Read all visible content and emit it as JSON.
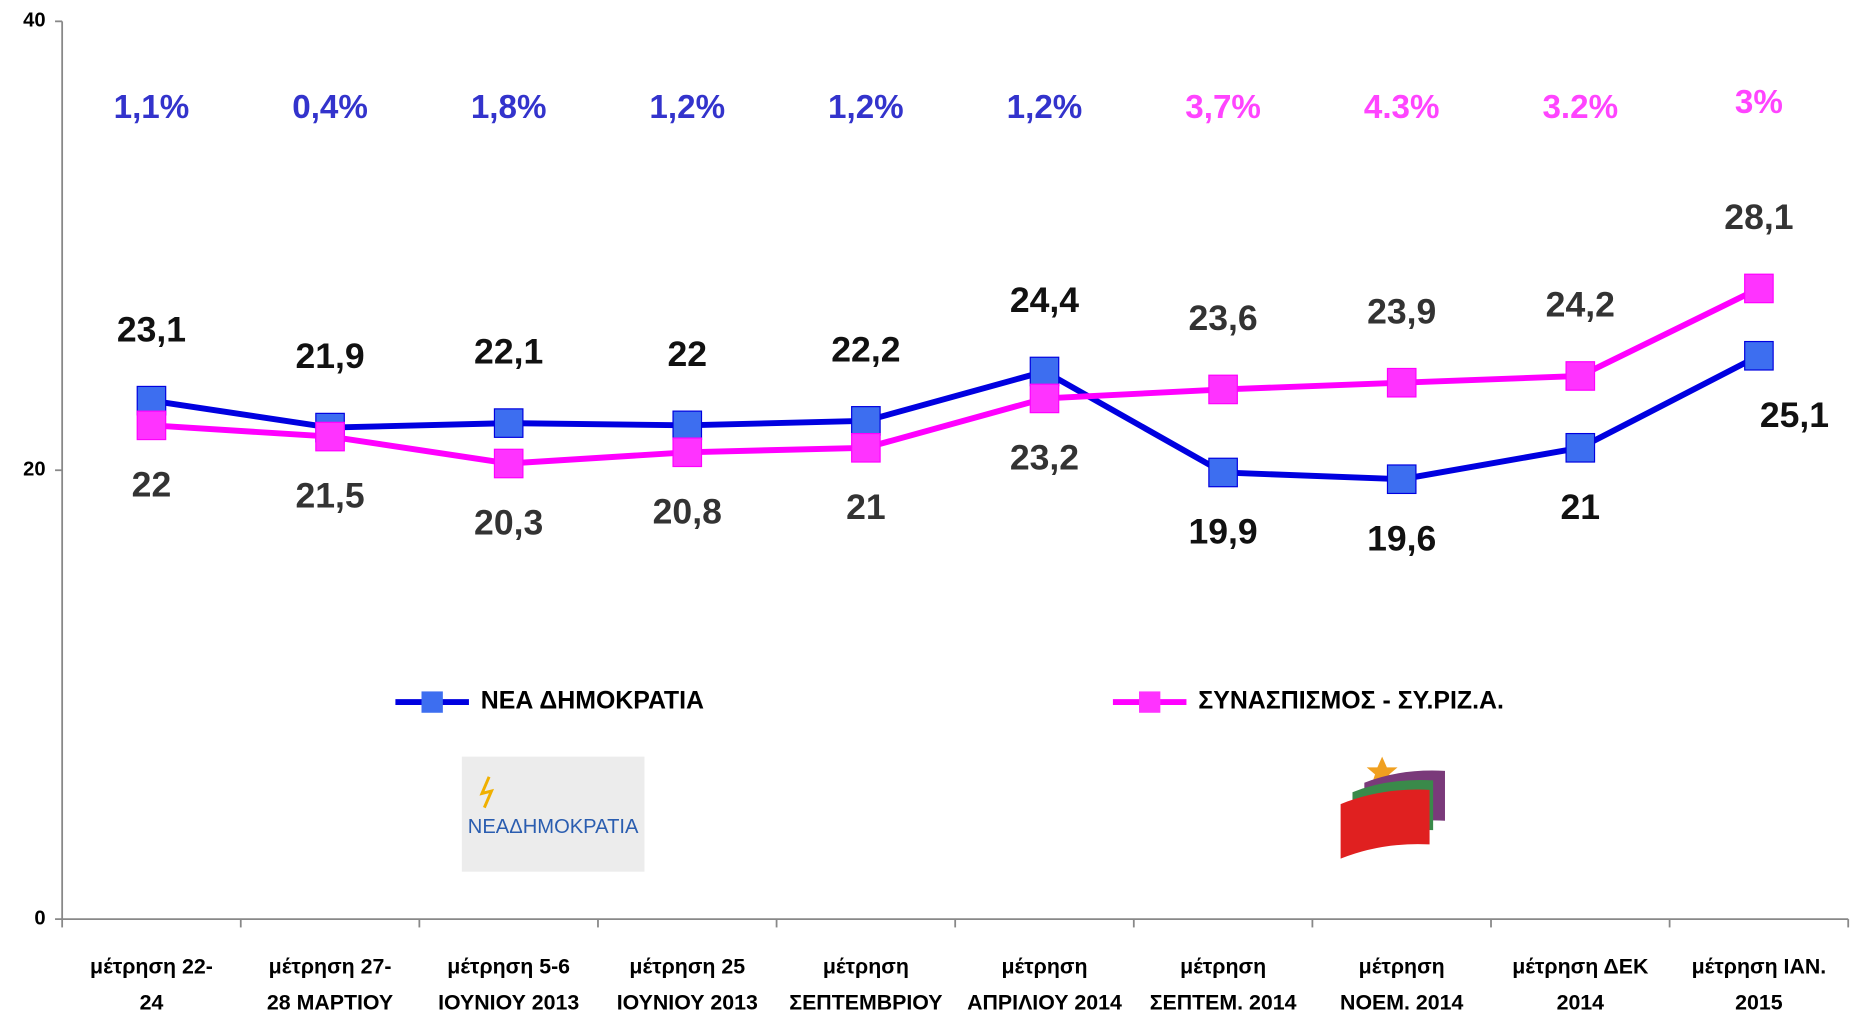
{
  "chart_data": {
    "type": "line",
    "categories": [
      "μέτρηση  22-\n24",
      "μέτρηση  27-\n28 ΜΑΡΤΙΟΥ",
      "μέτρηση  5-6\nΙΟΥΝΙΟΥ  2013",
      "μέτρηση 25\nΙΟΥΝΙΟΥ 2013",
      "μέτρηση\nΣΕΠΤΕΜΒΡΙΟΥ",
      "μέτρηση\nΑΠΡΙΛΙΟΥ 2014",
      "μέτρηση\nΣΕΠΤΕΜ. 2014",
      "μέτρηση\nΝΟΕΜ. 2014",
      "μέτρηση ΔΕΚ\n2014",
      "μέτρηση ΙΑΝ.\n2015"
    ],
    "series": [
      {
        "name": "ΝΕΑ ΔΗΜΟΚΡΑΤΙΑ",
        "color": "#0000e0",
        "marker_color": "#3d6ef0",
        "values": [
          23.1,
          21.9,
          22.1,
          22,
          22.2,
          24.4,
          19.9,
          19.6,
          21,
          25.1
        ],
        "value_labels": [
          "23,1",
          "21,9",
          "22,1",
          "22",
          "22,2",
          "24,4",
          "19,9",
          "19,6",
          "21",
          "25,1"
        ]
      },
      {
        "name": "ΣΥΝΑΣΠΙΣΜΟΣ - ΣΥ.ΡΙΖ.Α.",
        "color": "#ff00ff",
        "marker_color": "#ff33ff",
        "values": [
          22,
          21.5,
          20.3,
          20.8,
          21,
          23.2,
          23.6,
          23.9,
          24.2,
          28.1
        ],
        "value_labels": [
          "22",
          "21,5",
          "20,3",
          "20,8",
          "21",
          "23,2",
          "23,6",
          "23,9",
          "24,2",
          "28,1"
        ]
      }
    ],
    "annotations": [
      {
        "text": "1,1%",
        "color": "#3333cc"
      },
      {
        "text": "0,4%",
        "color": "#3333cc"
      },
      {
        "text": "1,8%",
        "color": "#3333cc"
      },
      {
        "text": "1,2%",
        "color": "#3333cc"
      },
      {
        "text": "1,2%",
        "color": "#3333cc"
      },
      {
        "text": "1,2%",
        "color": "#3333cc"
      },
      {
        "text": "3,7%",
        "color": "#ff44ff"
      },
      {
        "text": "4.3%",
        "color": "#ff44ff"
      },
      {
        "text": "3.2%",
        "color": "#ff44ff"
      },
      {
        "text": "3%",
        "color": "#ff44ff"
      }
    ],
    "logo_text": "ΝΕΑΔΗΜΟΚΡΑΤΙΑ",
    "ylim": [
      0,
      40
    ],
    "yticks": [
      0,
      20,
      40
    ],
    "grid": false,
    "legend": "bottom"
  }
}
